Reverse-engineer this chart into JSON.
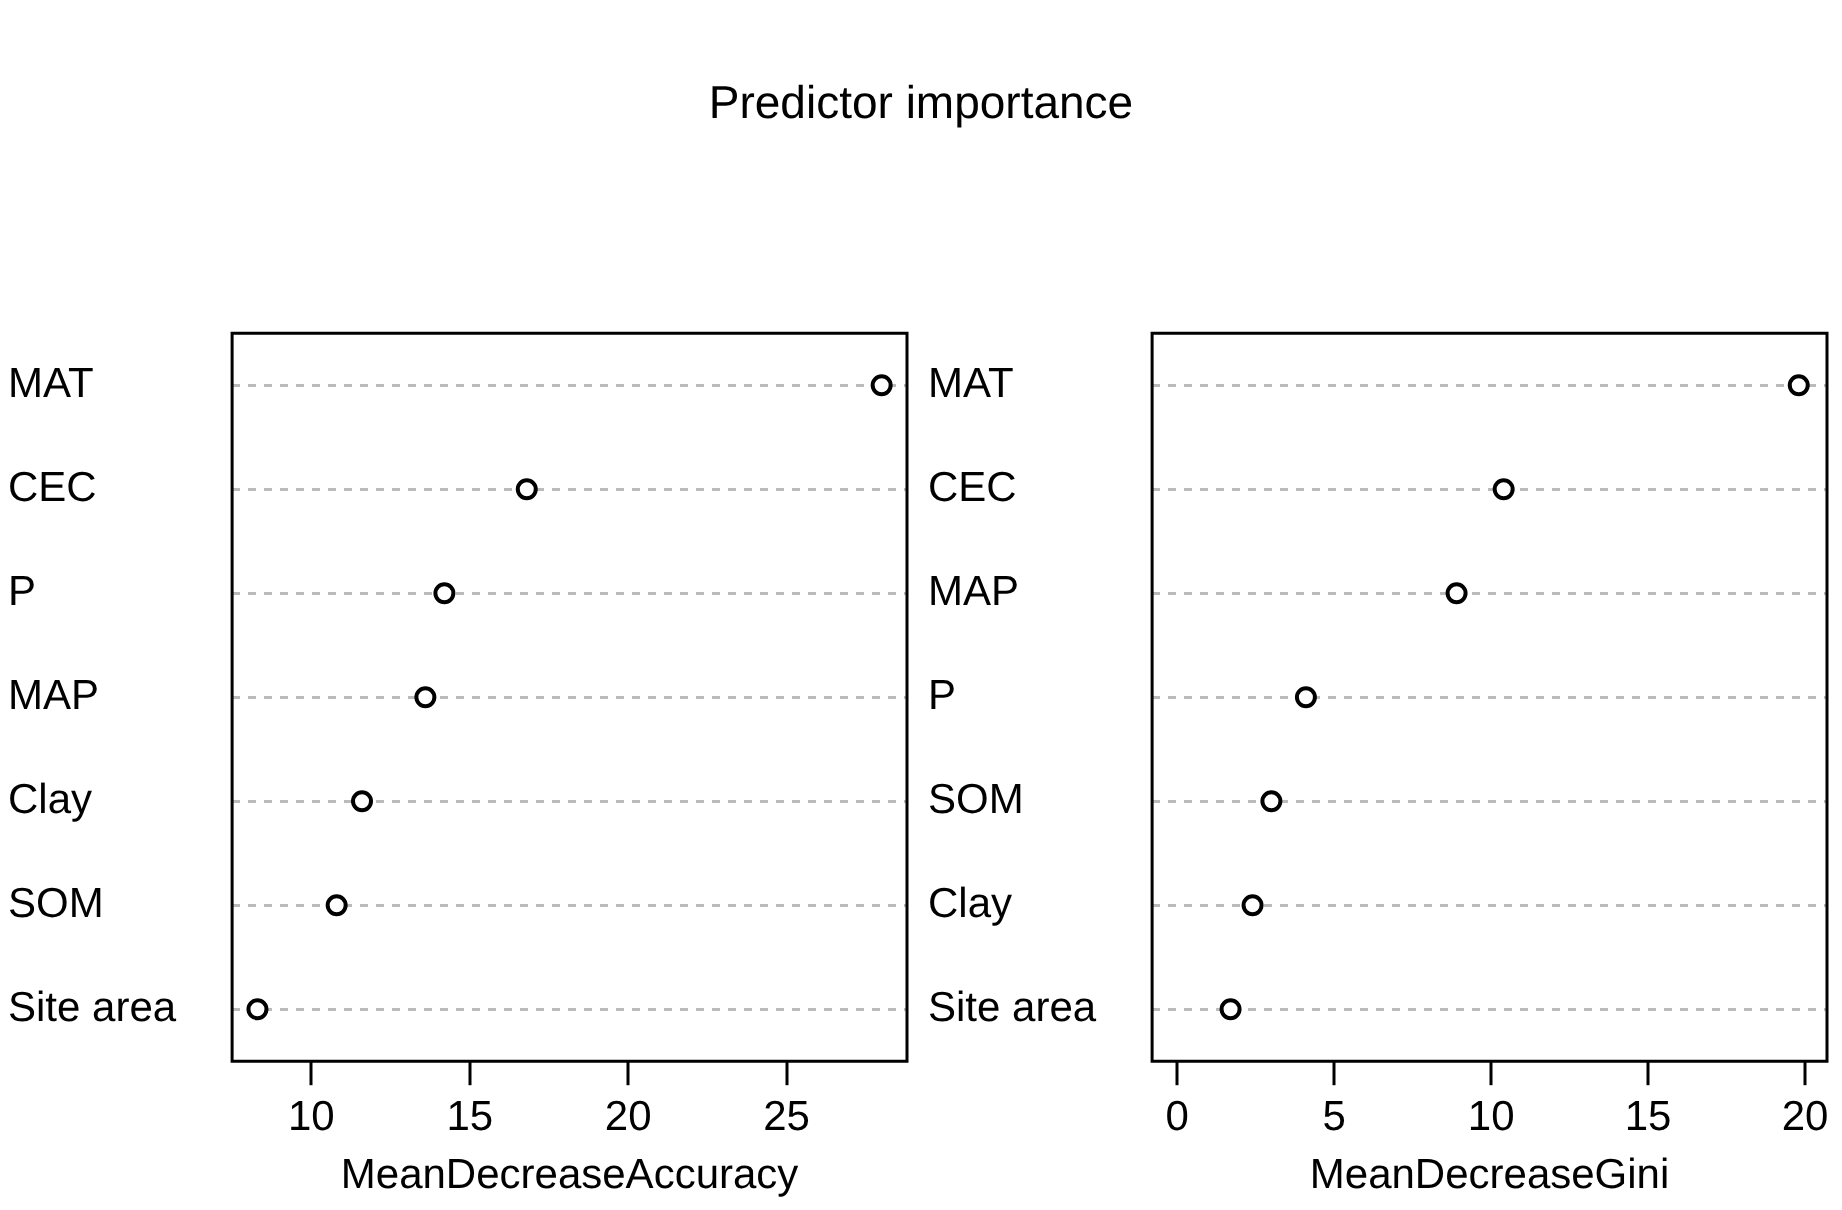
{
  "chart_data": [
    {
      "type": "scatter",
      "title": "Predictor importance",
      "orientation": "horizontal",
      "categories": [
        "MAT",
        "CEC",
        "P",
        "MAP",
        "Clay",
        "SOM",
        "Site area"
      ],
      "values": [
        28.0,
        16.8,
        14.2,
        13.6,
        11.6,
        10.8,
        8.3
      ],
      "color": "#000000",
      "marker": "circle",
      "xlim": [
        7.5,
        28.8
      ],
      "xticks": [
        10,
        15,
        20,
        25
      ],
      "xlabel": "MeanDecreaseAccuracy",
      "grid": "y"
    },
    {
      "type": "scatter",
      "orientation": "horizontal",
      "categories": [
        "MAT",
        "CEC",
        "MAP",
        "P",
        "SOM",
        "Clay",
        "Site area"
      ],
      "values": [
        19.8,
        10.4,
        8.9,
        4.1,
        3.0,
        2.4,
        1.7
      ],
      "color": "#000000",
      "marker": "circle",
      "xlim": [
        -0.8,
        20.7
      ],
      "xticks": [
        0,
        5,
        10,
        15,
        20
      ],
      "xlabel": "MeanDecreaseGini",
      "grid": "y"
    }
  ]
}
